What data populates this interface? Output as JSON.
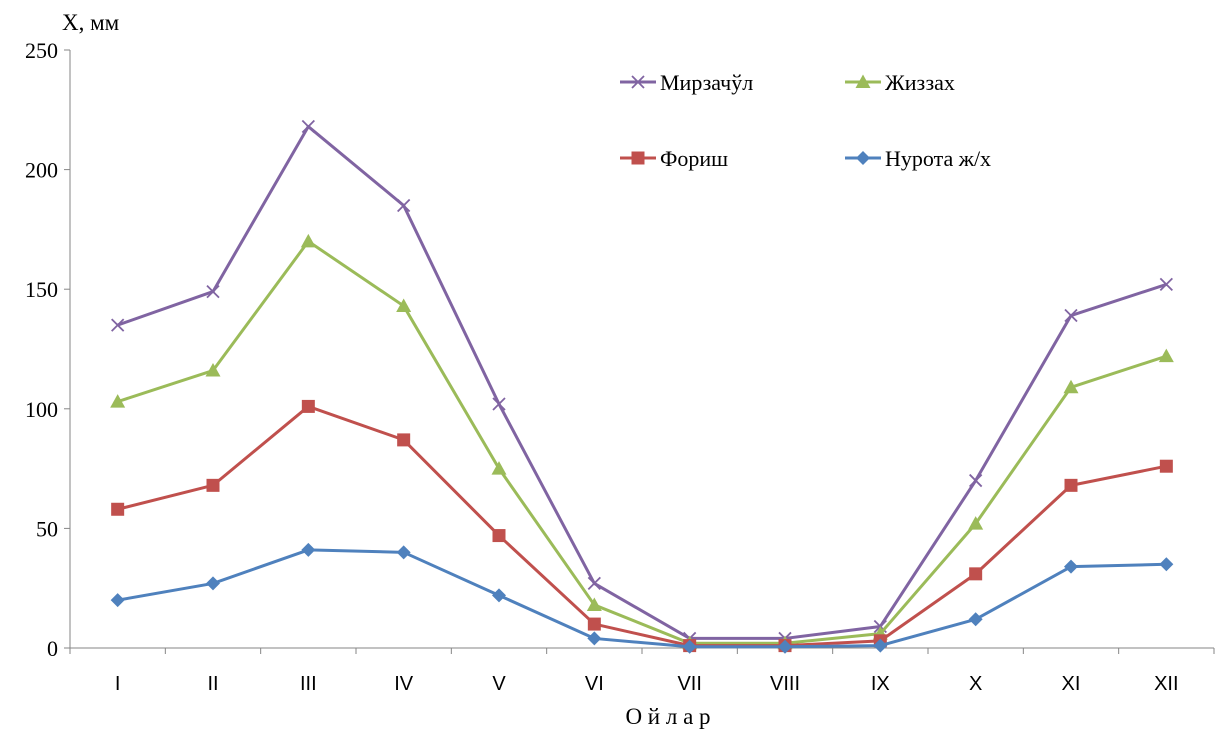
{
  "chart_data": {
    "type": "line",
    "title": "",
    "ylabel": "X, мм",
    "xlabel": "О й л а р",
    "ylim": [
      0,
      250
    ],
    "yticks": [
      0,
      50,
      100,
      150,
      200,
      250
    ],
    "categories": [
      "I",
      "II",
      "III",
      "IV",
      "V",
      "VI",
      "VII",
      "VIII",
      "IX",
      "X",
      "XI",
      "XII"
    ],
    "grid": false,
    "legend_position": "top-right",
    "series": [
      {
        "name": "Мирзачўл",
        "marker": "x",
        "color": "#8064a2",
        "values": [
          135,
          149,
          218,
          185,
          102,
          27,
          4,
          4,
          9,
          70,
          139,
          152
        ]
      },
      {
        "name": "Жиззах",
        "marker": "triangle",
        "color": "#9bbb59",
        "values": [
          103,
          116,
          170,
          143,
          75,
          18,
          2,
          2,
          6,
          52,
          109,
          122
        ]
      },
      {
        "name": "Фориш",
        "marker": "square",
        "color": "#c0504d",
        "values": [
          58,
          68,
          101,
          87,
          47,
          10,
          1,
          1,
          3,
          31,
          68,
          76
        ]
      },
      {
        "name": "Нурота ж/х",
        "marker": "diamond",
        "color": "#4f81bd",
        "values": [
          20,
          27,
          41,
          40,
          22,
          4,
          0.5,
          0.5,
          1,
          12,
          34,
          35
        ]
      }
    ]
  }
}
